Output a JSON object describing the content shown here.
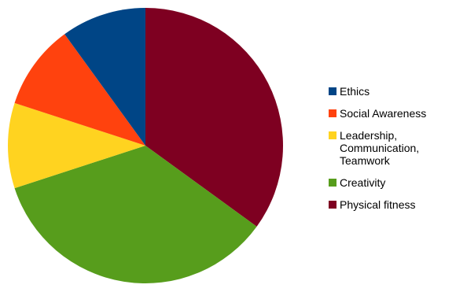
{
  "chart_data": {
    "type": "pie",
    "title": "",
    "slices": [
      {
        "label": "Ethics",
        "value": 10,
        "color": "#004586"
      },
      {
        "label": "Social Awareness",
        "value": 10,
        "color": "#ff420e"
      },
      {
        "label": "Leadership,\nCommunication,\nTeamwork",
        "value": 10,
        "color": "#ffd320"
      },
      {
        "label": "Creativity",
        "value": 35,
        "color": "#579d1c"
      },
      {
        "label": "Physical fitness",
        "value": 35,
        "color": "#7e0021"
      }
    ],
    "legend_placement": "right"
  }
}
